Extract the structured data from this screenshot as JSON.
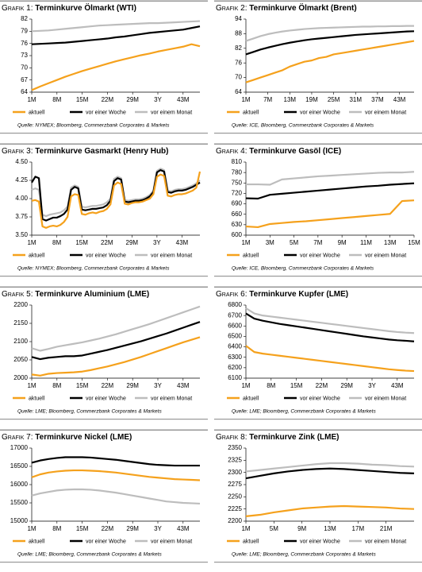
{
  "chart_data": [
    {
      "type": "line",
      "label": "Grafik 1:",
      "title": "Terminkurve Ölmarkt (WTI)",
      "source": "Quelle: NYMEX; Bloomberg, Commerzbank Corporates & Markets",
      "categories": [
        "1M",
        null,
        null,
        "8M",
        null,
        null,
        "15M",
        null,
        null,
        "22M",
        null,
        null,
        "29M",
        null,
        null,
        "3Y",
        null,
        null,
        "43M",
        null,
        null
      ],
      "ylim": [
        64,
        82
      ],
      "yticks": [
        64,
        67,
        70,
        73,
        76,
        79,
        82
      ],
      "series": [
        {
          "name": "aktuell",
          "color": "#f5a11c",
          "values": [
            64.5,
            65.4,
            66.2,
            67.0,
            67.8,
            68.5,
            69.2,
            69.8,
            70.4,
            71.0,
            71.6,
            72.1,
            72.6,
            73.1,
            73.5,
            74.0,
            74.4,
            74.8,
            75.2,
            75.8,
            75.3
          ]
        },
        {
          "name": "vor einer Woche",
          "color": "#000000",
          "values": [
            75.8,
            75.9,
            76.0,
            76.1,
            76.2,
            76.4,
            76.6,
            76.8,
            77.0,
            77.2,
            77.5,
            77.7,
            78.0,
            78.3,
            78.6,
            78.8,
            79.0,
            79.2,
            79.4,
            79.8,
            80.2
          ]
        },
        {
          "name": "vor einem Monat",
          "color": "#bdbdbd",
          "values": [
            79.0,
            79.1,
            79.2,
            79.4,
            79.6,
            79.8,
            80.0,
            80.2,
            80.4,
            80.5,
            80.6,
            80.7,
            80.8,
            80.9,
            81.0,
            81.0,
            81.1,
            81.2,
            81.3,
            81.4,
            81.5
          ]
        }
      ]
    },
    {
      "type": "line",
      "label": "Grafik 2:",
      "title": "Terminkurve Ölmarkt (Brent)",
      "source": "Quelle: ICE, Bloomberg, Commerzbank Corporates & Markets",
      "categories": [
        "1M",
        null,
        null,
        "7M",
        null,
        null,
        "13M",
        null,
        null,
        "19M",
        null,
        null,
        "25M",
        null,
        null,
        "31M",
        null,
        null,
        "37M",
        null,
        null,
        "43M",
        null,
        null
      ],
      "ylim": [
        64,
        94
      ],
      "yticks": [
        64,
        70,
        76,
        82,
        88,
        94
      ],
      "series": [
        {
          "name": "aktuell",
          "color": "#f5a11c",
          "values": [
            68,
            69,
            70,
            71,
            72,
            73,
            74.5,
            75.5,
            76.5,
            77,
            78,
            78.5,
            79.5,
            80,
            80.5,
            81,
            81.5,
            82,
            82.5,
            83,
            83.5,
            84,
            84.5,
            85
          ]
        },
        {
          "name": "vor einer Woche",
          "color": "#000000",
          "values": [
            79.5,
            80.5,
            81.5,
            82.3,
            83,
            83.7,
            84.3,
            84.8,
            85.3,
            85.7,
            86,
            86.3,
            86.6,
            86.9,
            87.2,
            87.5,
            87.7,
            87.9,
            88.1,
            88.3,
            88.5,
            88.7,
            88.9,
            89
          ]
        },
        {
          "name": "vor einem Monat",
          "color": "#bdbdbd",
          "values": [
            85,
            86,
            87,
            87.8,
            88.4,
            88.9,
            89.3,
            89.6,
            89.9,
            90.1,
            90.3,
            90.4,
            90.5,
            90.6,
            90.7,
            90.8,
            90.9,
            90.9,
            91,
            91,
            91.1,
            91.1,
            91.2,
            91.2
          ]
        }
      ]
    },
    {
      "type": "line",
      "label": "Grafik 3:",
      "title": "Terminkurve Gasmarkt (Henry Hub)",
      "source": "Quelle: NYMEX; Bloomberg, Commerzbank Corporates & Markets",
      "categories": [
        "1M",
        null,
        null,
        null,
        null,
        null,
        null,
        "8M",
        null,
        null,
        null,
        null,
        null,
        null,
        "15M",
        null,
        null,
        null,
        null,
        null,
        null,
        "22M",
        null,
        null,
        null,
        null,
        null,
        null,
        "29M",
        null,
        null,
        null,
        null,
        null,
        null,
        "3Y",
        null,
        null,
        null,
        null,
        null,
        null,
        "43M",
        null,
        null,
        null,
        null,
        null
      ],
      "ylim": [
        3.5,
        4.5
      ],
      "yticks": [
        {
          "value": 3.5,
          "label": "3.50"
        },
        3.75,
        {
          "value": 4,
          "label": "4.00"
        },
        4.25,
        {
          "value": 4.5,
          "label": "4.50"
        }
      ],
      "series": [
        {
          "name": "aktuell",
          "color": "#f5a11c",
          "values": [
            3.97,
            3.98,
            3.96,
            3.62,
            3.6,
            3.62,
            3.63,
            3.62,
            3.64,
            3.68,
            3.75,
            4.03,
            4.06,
            4.05,
            3.79,
            3.78,
            3.8,
            3.81,
            3.8,
            3.82,
            3.83,
            3.86,
            3.92,
            4.18,
            4.22,
            4.2,
            3.93,
            3.92,
            3.94,
            3.95,
            3.95,
            3.96,
            3.98,
            4.0,
            4.06,
            4.3,
            4.33,
            4.31,
            4.04,
            4.03,
            4.05,
            4.06,
            4.06,
            4.07,
            4.09,
            4.11,
            4.15,
            4.37
          ]
        },
        {
          "name": "vor einer Woche",
          "color": "#000000",
          "values": [
            4.22,
            4.3,
            4.28,
            3.72,
            3.7,
            3.72,
            3.74,
            3.74,
            3.76,
            3.79,
            3.85,
            4.12,
            4.16,
            4.14,
            3.85,
            3.84,
            3.85,
            3.86,
            3.86,
            3.87,
            3.88,
            3.91,
            3.97,
            4.24,
            4.28,
            4.26,
            3.96,
            3.95,
            3.96,
            3.97,
            3.97,
            3.98,
            4.0,
            4.03,
            4.09,
            4.36,
            4.39,
            4.37,
            4.09,
            4.08,
            4.1,
            4.11,
            4.11,
            4.12,
            4.14,
            4.16,
            4.19,
            4.22
          ]
        },
        {
          "name": "vor einem Monat",
          "color": "#bdbdbd",
          "values": [
            4.12,
            4.14,
            4.12,
            3.78,
            3.76,
            3.78,
            3.79,
            3.8,
            3.81,
            3.84,
            3.89,
            4.15,
            4.18,
            4.16,
            3.89,
            3.88,
            3.89,
            3.9,
            3.9,
            3.91,
            3.92,
            3.95,
            4.0,
            4.27,
            4.3,
            4.28,
            3.98,
            3.97,
            3.98,
            3.99,
            3.99,
            4.0,
            4.02,
            4.05,
            4.11,
            4.38,
            4.41,
            4.39,
            4.11,
            4.1,
            4.12,
            4.13,
            4.13,
            4.14,
            4.16,
            4.18,
            4.21,
            4.25
          ]
        }
      ]
    },
    {
      "type": "line",
      "label": "Grafik 4:",
      "title": "Terminkurve Gasöl (ICE)",
      "source": "Quelle: ICE, Bloomberg, Commerzbank Corporates & Markets",
      "categories": [
        "1M",
        null,
        "3M",
        null,
        "5M",
        null,
        "7M",
        null,
        "9M",
        null,
        "11M",
        null,
        "13M",
        null,
        "15M"
      ],
      "ylim": [
        600,
        810
      ],
      "yticks": [
        600,
        630,
        660,
        690,
        720,
        750,
        780,
        810
      ],
      "series": [
        {
          "name": "aktuell",
          "color": "#f5a11c",
          "values": [
            625,
            623,
            632,
            635,
            638,
            640,
            643,
            646,
            649,
            652,
            655,
            658,
            661,
            698,
            700
          ]
        },
        {
          "name": "vor einer Woche",
          "color": "#000000",
          "values": [
            706,
            705,
            716,
            719,
            722,
            725,
            728,
            731,
            734,
            737,
            740,
            742,
            745,
            747,
            749
          ]
        },
        {
          "name": "vor einem Monat",
          "color": "#bdbdbd",
          "values": [
            746,
            746,
            745,
            760,
            763,
            766,
            769,
            771,
            773,
            775,
            777,
            779,
            780,
            780,
            782
          ]
        }
      ]
    },
    {
      "type": "line",
      "label": "Grafik 5:",
      "title": "Terminkurve Aluminium (LME)",
      "source": "Quelle: LME; Bloomberg, Commerzbank Corporates & Markets",
      "categories": [
        "1M",
        null,
        null,
        "8M",
        null,
        null,
        "15M",
        null,
        null,
        "22M",
        null,
        null,
        "29M",
        null,
        null,
        "3Y",
        null,
        null,
        "43M",
        null,
        null
      ],
      "ylim": [
        2000,
        2200
      ],
      "yticks": [
        2000,
        2050,
        2100,
        2150,
        2200
      ],
      "series": [
        {
          "name": "aktuell",
          "color": "#f5a11c",
          "values": [
            2010,
            2007,
            2012,
            2014,
            2015,
            2016,
            2018,
            2022,
            2027,
            2032,
            2038,
            2044,
            2051,
            2058,
            2066,
            2074,
            2082,
            2090,
            2098,
            2105,
            2112
          ]
        },
        {
          "name": "vor einer Woche",
          "color": "#000000",
          "values": [
            2058,
            2052,
            2056,
            2058,
            2060,
            2060,
            2062,
            2067,
            2072,
            2077,
            2083,
            2089,
            2095,
            2101,
            2108,
            2115,
            2122,
            2130,
            2138,
            2146,
            2154
          ]
        },
        {
          "name": "vor einem Monat",
          "color": "#bdbdbd",
          "values": [
            2082,
            2075,
            2080,
            2086,
            2090,
            2094,
            2098,
            2103,
            2108,
            2114,
            2120,
            2127,
            2134,
            2141,
            2148,
            2156,
            2164,
            2172,
            2180,
            2188,
            2196
          ]
        }
      ]
    },
    {
      "type": "line",
      "label": "Grafik 6:",
      "title": "Terminkurve Kupfer (LME)",
      "source": "Quelle: LME; Bloomberg, Commerzbank Corporates & Markets",
      "categories": [
        "1M",
        null,
        null,
        "8M",
        null,
        null,
        "15M",
        null,
        null,
        "22M",
        null,
        null,
        "29M",
        null,
        null,
        "3Y",
        null,
        null,
        "43M",
        null,
        null
      ],
      "ylim": [
        6100,
        6800
      ],
      "yticks": [
        6100,
        6200,
        6300,
        6400,
        6500,
        6600,
        6700,
        6800
      ],
      "series": [
        {
          "name": "aktuell",
          "color": "#f5a11c",
          "values": [
            6410,
            6350,
            6335,
            6325,
            6315,
            6305,
            6295,
            6285,
            6275,
            6265,
            6255,
            6245,
            6235,
            6225,
            6215,
            6205,
            6195,
            6185,
            6178,
            6172,
            6168
          ]
        },
        {
          "name": "vor einer Woche",
          "color": "#000000",
          "values": [
            6720,
            6670,
            6650,
            6635,
            6620,
            6608,
            6596,
            6584,
            6572,
            6560,
            6548,
            6536,
            6524,
            6512,
            6500,
            6490,
            6480,
            6470,
            6463,
            6458,
            6452
          ]
        },
        {
          "name": "vor einem Monat",
          "color": "#bdbdbd",
          "values": [
            6770,
            6720,
            6700,
            6690,
            6680,
            6670,
            6660,
            6650,
            6640,
            6630,
            6620,
            6610,
            6600,
            6590,
            6580,
            6570,
            6560,
            6550,
            6542,
            6536,
            6532
          ]
        }
      ]
    },
    {
      "type": "line",
      "label": "Grafik 7:",
      "title": "Terminkurve Nickel (LME)",
      "source": "Quelle: LME; Bloomberg, Commerzbank Corporates & Markets",
      "categories": [
        "1M",
        null,
        null,
        "8M",
        null,
        null,
        "15M",
        null,
        null,
        "22M",
        null,
        null,
        "29M",
        null,
        null,
        "3Y",
        null,
        null,
        "43M",
        null,
        null
      ],
      "ylim": [
        15000,
        17000
      ],
      "yticks": [
        15000,
        15500,
        16000,
        16500,
        17000
      ],
      "series": [
        {
          "name": "aktuell",
          "color": "#f5a11c",
          "values": [
            16200,
            16280,
            16330,
            16360,
            16380,
            16390,
            16390,
            16380,
            16370,
            16350,
            16330,
            16300,
            16270,
            16240,
            16210,
            16190,
            16170,
            16150,
            16140,
            16130,
            16120
          ]
        },
        {
          "name": "vor einer Woche",
          "color": "#000000",
          "values": [
            16600,
            16660,
            16700,
            16730,
            16750,
            16750,
            16750,
            16740,
            16720,
            16700,
            16680,
            16650,
            16620,
            16590,
            16560,
            16540,
            16530,
            16520,
            16520,
            16520,
            16520
          ]
        },
        {
          "name": "vor einem Monat",
          "color": "#bdbdbd",
          "values": [
            15700,
            15760,
            15800,
            15840,
            15860,
            15870,
            15870,
            15860,
            15840,
            15810,
            15780,
            15740,
            15700,
            15660,
            15620,
            15580,
            15540,
            15520,
            15500,
            15490,
            15480
          ]
        }
      ]
    },
    {
      "type": "line",
      "label": "Grafik 8:",
      "title": "Terminkurve Zink (LME)",
      "source": "Quelle: LME; Bloomberg, Commerzbank Corporates & Markets",
      "categories": [
        "1M",
        null,
        "5M",
        null,
        "9M",
        null,
        "13M",
        null,
        "17M",
        null,
        "21M",
        null,
        null
      ],
      "ylim": [
        2200,
        2350
      ],
      "yticks": [
        2200,
        2225,
        2250,
        2275,
        2300,
        2325,
        2350
      ],
      "series": [
        {
          "name": "aktuell",
          "color": "#f5a11c",
          "values": [
            2210,
            2213,
            2218,
            2222,
            2226,
            2228,
            2230,
            2231,
            2230,
            2229,
            2228,
            2226,
            2225
          ]
        },
        {
          "name": "vor einer Woche",
          "color": "#000000",
          "values": [
            2288,
            2293,
            2298,
            2302,
            2305,
            2307,
            2308,
            2307,
            2305,
            2303,
            2301,
            2299,
            2298
          ]
        },
        {
          "name": "vor einem Monat",
          "color": "#bdbdbd",
          "values": [
            2302,
            2305,
            2308,
            2311,
            2314,
            2317,
            2319,
            2319,
            2318,
            2316,
            2315,
            2313,
            2312
          ]
        }
      ]
    }
  ]
}
